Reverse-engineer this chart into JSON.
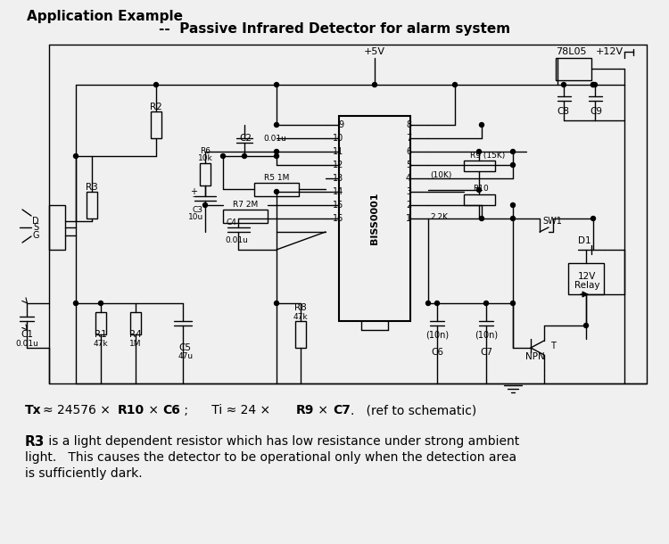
{
  "title1": "Application Example",
  "title2": "--  Passive Infrared Detector for alarm system",
  "bg_color": "#f0f0f0",
  "fg_color": "#000000",
  "formula_line": "Tx ≈ 24576 × R10 × C6 ;     Ti ≈ 24 × R9 × C7.   (ref to schematic)",
  "desc_line1": "R3 is a light dependent resistor which has low resistance under strong ambient",
  "desc_line2": "light.   This causes the detector to be operational only when the detection area",
  "desc_line3": "is sufficiently dark."
}
